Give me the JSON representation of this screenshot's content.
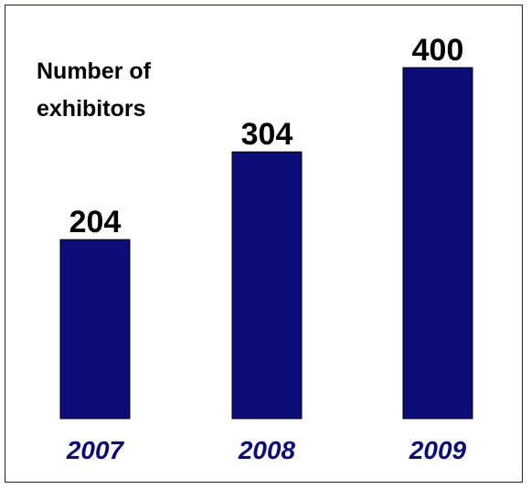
{
  "chart_data": {
    "type": "bar",
    "title_lines": [
      "Number of",
      "exhibitors"
    ],
    "categories": [
      "2007",
      "2008",
      "2009"
    ],
    "values": [
      204,
      304,
      400
    ],
    "data_labels": [
      "204",
      "304",
      "400"
    ],
    "ylim": [
      0,
      400
    ],
    "grid": false,
    "legend": "none",
    "colors": {
      "bar": "#0c0c78",
      "category_label": "#0c0c78",
      "frame": "#1c1c6e"
    }
  }
}
